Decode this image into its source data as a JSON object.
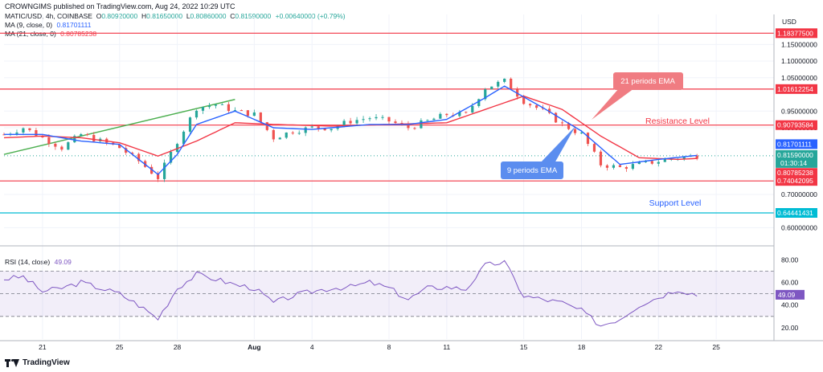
{
  "caption": "CROWNGIMS published on TradingView.com, Aug 24, 2022 10:29 UTC",
  "header": {
    "symbol": "MATIC/USD, 4h, COINBASE",
    "ohlc": [
      {
        "label": "O",
        "value": "0.80920000"
      },
      {
        "label": "H",
        "value": "0.81650000"
      },
      {
        "label": "L",
        "value": "0.80860000"
      },
      {
        "label": "C",
        "value": "0.81590000"
      }
    ],
    "change": "+0.00640000 (+0.79%)",
    "ma9": {
      "label": "MA (9, close, 0)",
      "value": "0.81701111",
      "color": "#2962ff"
    },
    "ma21": {
      "label": "MA (21, close, 0)",
      "value": "0.80785238",
      "color": "#f23645"
    },
    "rsi": {
      "label": "RSI (14, close)",
      "value": "49.09",
      "color": "#7e57c2"
    }
  },
  "footer": {
    "brand": "TradingView"
  },
  "colors": {
    "up": "#26a69a",
    "down": "#ef5350",
    "level": "#f23645",
    "support2": "#00bcd4",
    "trendline": "#4caf50",
    "ma9": "#2962ff",
    "ma21": "#f23645",
    "rsi": "#7e57c2"
  },
  "chart_data": [
    {
      "type": "candlestick",
      "title": "MATIC/USD, 4h, COINBASE",
      "yunit": "USD",
      "ylim": [
        0.56,
        1.24
      ],
      "y_ticks": [
        "1.15000000",
        "1.10000000",
        "1.05000000",
        "0.95000000",
        "0.90000000",
        "0.70000000",
        "0.60000000"
      ],
      "x_ticks": [
        "21",
        "25",
        "28",
        "Aug",
        "4",
        "8",
        "11",
        "15",
        "18",
        "22",
        "25"
      ],
      "xlim_days": [
        "Jul 19",
        "Aug 28"
      ],
      "grid": true,
      "levels": [
        {
          "value": 1.183775,
          "label": "1.18377500",
          "color": "#f23645"
        },
        {
          "value": 1.01612254,
          "label": "1.01612254",
          "color": "#f23645"
        },
        {
          "value": 0.90793584,
          "label": "0.90793584",
          "color": "#f23645"
        },
        {
          "value": 0.74042095,
          "label": "0.74042095",
          "color": "#f23645"
        },
        {
          "value": 0.64441431,
          "label": "0.64441431",
          "color": "#00bcd4"
        }
      ],
      "price_badges": [
        {
          "value": 0.81701111,
          "label": "0.81701111",
          "color": "#2962ff"
        },
        {
          "value": 0.8159,
          "label": "0.81590000",
          "sub": "01:30:14",
          "color": "#26a69a"
        },
        {
          "value": 0.80785238,
          "label": "0.80785238",
          "color": "#f23645"
        }
      ],
      "annotations": [
        {
          "text": "21 periods EMA",
          "style": "callout",
          "color": "#f23645"
        },
        {
          "text": "9 periods EMA",
          "style": "callout",
          "color": "#2962ff"
        },
        {
          "text": "Resistance Level",
          "style": "text",
          "color": "#f23645"
        },
        {
          "text": "Support Level",
          "style": "text",
          "color": "#2962ff"
        }
      ],
      "price_anchors": [
        [
          "Jul 19",
          0.88
        ],
        [
          "Jul 20",
          0.9
        ],
        [
          "Jul 21",
          0.87
        ],
        [
          "Jul 22",
          0.84
        ],
        [
          "Jul 23",
          0.88
        ],
        [
          "Jul 24",
          0.86
        ],
        [
          "Jul 25",
          0.84
        ],
        [
          "Jul 26",
          0.8
        ],
        [
          "Jul 27",
          0.75
        ],
        [
          "Jul 28",
          0.86
        ],
        [
          "Jul 29",
          0.96
        ],
        [
          "Jul 30",
          0.97
        ],
        [
          "Jul 31",
          0.95
        ],
        [
          "Aug 1",
          0.94
        ],
        [
          "Aug 2",
          0.87
        ],
        [
          "Aug 3",
          0.89
        ],
        [
          "Aug 4",
          0.9
        ],
        [
          "Aug 5",
          0.9
        ],
        [
          "Aug 6",
          0.92
        ],
        [
          "Aug 7",
          0.93
        ],
        [
          "Aug 8",
          0.92
        ],
        [
          "Aug 9",
          0.9
        ],
        [
          "Aug 10",
          0.92
        ],
        [
          "Aug 11",
          0.94
        ],
        [
          "Aug 12",
          0.94
        ],
        [
          "Aug 13",
          1.02
        ],
        [
          "Aug 14",
          1.04
        ],
        [
          "Aug 15",
          0.98
        ],
        [
          "Aug 16",
          0.95
        ],
        [
          "Aug 17",
          0.91
        ],
        [
          "Aug 18",
          0.88
        ],
        [
          "Aug 19",
          0.79
        ],
        [
          "Aug 20",
          0.78
        ],
        [
          "Aug 21",
          0.79
        ],
        [
          "Aug 22",
          0.8
        ],
        [
          "Aug 23",
          0.81
        ],
        [
          "Aug 24",
          0.8159
        ]
      ],
      "ema9_anchors": [
        [
          "Jul 19",
          0.88
        ],
        [
          "Jul 21",
          0.88
        ],
        [
          "Jul 23",
          0.86
        ],
        [
          "Jul 25",
          0.85
        ],
        [
          "Jul 27",
          0.76
        ],
        [
          "Jul 28",
          0.82
        ],
        [
          "Jul 29",
          0.91
        ],
        [
          "Jul 31",
          0.95
        ],
        [
          "Aug 2",
          0.9
        ],
        [
          "Aug 4",
          0.895
        ],
        [
          "Aug 7",
          0.91
        ],
        [
          "Aug 9",
          0.91
        ],
        [
          "Aug 11",
          0.925
        ],
        [
          "Aug 13",
          0.99
        ],
        [
          "Aug 14",
          1.025
        ],
        [
          "Aug 16",
          0.96
        ],
        [
          "Aug 18",
          0.89
        ],
        [
          "Aug 20",
          0.79
        ],
        [
          "Aug 22",
          0.805
        ],
        [
          "Aug 24",
          0.817
        ]
      ],
      "ema21_anchors": [
        [
          "Jul 19",
          0.87
        ],
        [
          "Jul 21",
          0.875
        ],
        [
          "Jul 23",
          0.87
        ],
        [
          "Jul 25",
          0.855
        ],
        [
          "Jul 27",
          0.815
        ],
        [
          "Jul 29",
          0.86
        ],
        [
          "Jul 31",
          0.915
        ],
        [
          "Aug 2",
          0.91
        ],
        [
          "Aug 5",
          0.905
        ],
        [
          "Aug 8",
          0.91
        ],
        [
          "Aug 11",
          0.915
        ],
        [
          "Aug 13",
          0.955
        ],
        [
          "Aug 15",
          0.995
        ],
        [
          "Aug 17",
          0.955
        ],
        [
          "Aug 19",
          0.875
        ],
        [
          "Aug 21",
          0.81
        ],
        [
          "Aug 23",
          0.805
        ],
        [
          "Aug 24",
          0.808
        ]
      ],
      "trendline": [
        [
          "Jul 19",
          0.82
        ],
        [
          "Jul 31",
          0.985
        ]
      ]
    },
    {
      "type": "line",
      "title": "RSI (14, close)",
      "ylim": [
        10,
        88
      ],
      "y_ticks": [
        "80.00",
        "60.00",
        "40.00",
        "20.00"
      ],
      "bands": [
        30,
        50,
        70
      ],
      "current": {
        "value": 49.09,
        "label": "49.09"
      },
      "rsi_anchors": [
        [
          "Jul 19",
          63
        ],
        [
          "Jul 20",
          65
        ],
        [
          "Jul 21",
          52
        ],
        [
          "Jul 22",
          55
        ],
        [
          "Jul 23",
          60
        ],
        [
          "Jul 24",
          55
        ],
        [
          "Jul 25",
          50
        ],
        [
          "Jul 26",
          40
        ],
        [
          "Jul 27",
          28
        ],
        [
          "Jul 28",
          55
        ],
        [
          "Jul 29",
          67
        ],
        [
          "Jul 30",
          63
        ],
        [
          "Jul 31",
          58
        ],
        [
          "Aug 1",
          55
        ],
        [
          "Aug 2",
          42
        ],
        [
          "Aug 3",
          48
        ],
        [
          "Aug 4",
          52
        ],
        [
          "Aug 5",
          55
        ],
        [
          "Aug 6",
          56
        ],
        [
          "Aug 7",
          60
        ],
        [
          "Aug 8",
          55
        ],
        [
          "Aug 9",
          45
        ],
        [
          "Aug 10",
          55
        ],
        [
          "Aug 11",
          56
        ],
        [
          "Aug 12",
          54
        ],
        [
          "Aug 13",
          75
        ],
        [
          "Aug 14",
          78
        ],
        [
          "Aug 15",
          48
        ],
        [
          "Aug 16",
          45
        ],
        [
          "Aug 17",
          42
        ],
        [
          "Aug 18",
          35
        ],
        [
          "Aug 19",
          22
        ],
        [
          "Aug 20",
          28
        ],
        [
          "Aug 21",
          40
        ],
        [
          "Aug 22",
          47
        ],
        [
          "Aug 23",
          54
        ],
        [
          "Aug 24",
          49.09
        ]
      ]
    }
  ]
}
